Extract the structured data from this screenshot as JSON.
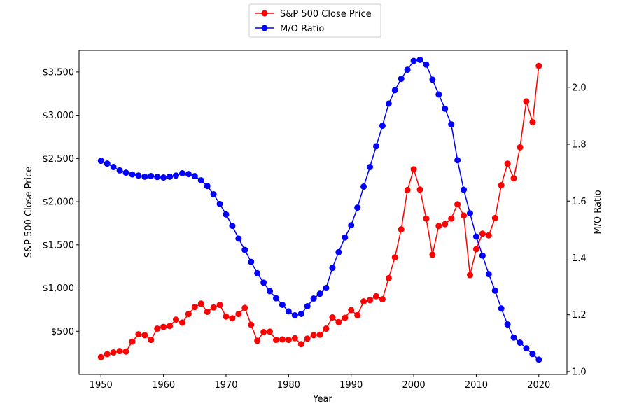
{
  "chart_data": {
    "type": "line",
    "xlabel": "Year",
    "ylabel_left": "S&P 500 Close Price",
    "ylabel_right": "M/O Ratio",
    "xlim": [
      1946.5,
      2024.5
    ],
    "ylim_left": [
      0,
      3750
    ],
    "ylim_right": [
      0.99,
      2.13
    ],
    "x_ticks": [
      1950,
      1960,
      1970,
      1980,
      1990,
      2000,
      2010,
      2020
    ],
    "y_ticks_left": [
      500,
      1000,
      1500,
      2000,
      2500,
      3000,
      3500
    ],
    "y_tick_labels_left": [
      "$500",
      "$1,000",
      "$1,500",
      "$2,000",
      "$2,500",
      "$3,000",
      "$3,500"
    ],
    "y_ticks_right": [
      1.0,
      1.2,
      1.4,
      1.6,
      1.8,
      2.0
    ],
    "y_tick_labels_right": [
      "1.0",
      "1.2",
      "1.4",
      "1.6",
      "1.8",
      "2.0"
    ],
    "legend_placement": "top-center",
    "grid": false,
    "x": [
      1950,
      1951,
      1952,
      1953,
      1954,
      1955,
      1956,
      1957,
      1958,
      1959,
      1960,
      1961,
      1962,
      1963,
      1964,
      1965,
      1966,
      1967,
      1968,
      1969,
      1970,
      1971,
      1972,
      1973,
      1974,
      1975,
      1976,
      1977,
      1978,
      1979,
      1980,
      1981,
      1982,
      1983,
      1984,
      1985,
      1986,
      1987,
      1988,
      1989,
      1990,
      1991,
      1992,
      1993,
      1994,
      1995,
      1996,
      1997,
      1998,
      1999,
      2000,
      2001,
      2002,
      2003,
      2004,
      2005,
      2006,
      2007,
      2008,
      2009,
      2010,
      2011,
      2012,
      2013,
      2014,
      2015,
      2016,
      2017,
      2018,
      2019,
      2020
    ],
    "series": [
      {
        "name": "S&P 500 Close Price",
        "axis": "left",
        "color": "#ff0000",
        "values": [
          200,
          235,
          255,
          270,
          265,
          380,
          465,
          455,
          400,
          530,
          550,
          560,
          635,
          600,
          700,
          780,
          820,
          725,
          775,
          805,
          670,
          650,
          700,
          770,
          575,
          390,
          490,
          495,
          400,
          405,
          400,
          420,
          350,
          415,
          455,
          460,
          530,
          660,
          605,
          655,
          745,
          685,
          845,
          860,
          905,
          870,
          1115,
          1355,
          1680,
          2135,
          2375,
          2140,
          1805,
          1385,
          1720,
          1740,
          1805,
          1970,
          1840,
          1150,
          1450,
          1630,
          1610,
          1810,
          2190,
          2440,
          2270,
          2630,
          3160,
          2920,
          3570
        ]
      },
      {
        "name": "M/O Ratio",
        "axis": "right",
        "color": "#0000ff",
        "values": [
          1.742,
          1.732,
          1.72,
          1.708,
          1.7,
          1.694,
          1.69,
          1.686,
          1.688,
          1.685,
          1.683,
          1.686,
          1.69,
          1.698,
          1.695,
          1.688,
          1.673,
          1.653,
          1.624,
          1.59,
          1.553,
          1.513,
          1.468,
          1.428,
          1.386,
          1.346,
          1.313,
          1.283,
          1.258,
          1.235,
          1.212,
          1.198,
          1.203,
          1.23,
          1.257,
          1.274,
          1.294,
          1.365,
          1.42,
          1.472,
          1.515,
          1.577,
          1.651,
          1.72,
          1.793,
          1.865,
          1.943,
          1.99,
          2.03,
          2.062,
          2.093,
          2.097,
          2.08,
          2.027,
          1.975,
          1.925,
          1.87,
          1.744,
          1.64,
          1.557,
          1.475,
          1.408,
          1.343,
          1.285,
          1.222,
          1.166,
          1.12,
          1.102,
          1.082,
          1.062,
          1.042
        ]
      }
    ]
  }
}
